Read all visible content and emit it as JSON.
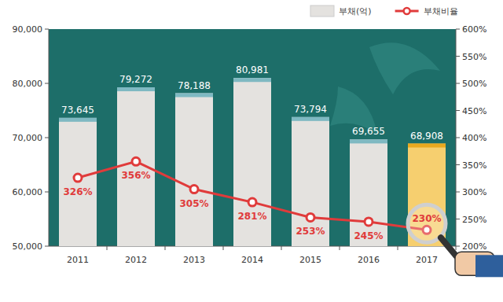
{
  "chart_data": {
    "type": "bar",
    "categories": [
      "2011",
      "2012",
      "2013",
      "2014",
      "2015",
      "2016",
      "2017"
    ],
    "series": [
      {
        "name": "부채(억)",
        "type": "bar",
        "color": "#e4e2df",
        "colors": [
          "#e4e2df",
          "#e4e2df",
          "#e4e2df",
          "#e4e2df",
          "#e4e2df",
          "#e4e2df",
          "#f6cf6f"
        ],
        "values": [
          73645,
          79272,
          78188,
          80981,
          73794,
          69655,
          68908
        ],
        "value_labels": [
          "73,645",
          "79,272",
          "78,188",
          "80,981",
          "73,794",
          "69,655",
          "68,908"
        ]
      },
      {
        "name": "부채비율",
        "type": "line",
        "axis": "y2",
        "color": "#e03b3b",
        "marker": "circle",
        "values": [
          326,
          356,
          305,
          281,
          253,
          245,
          230
        ],
        "value_labels": [
          "326%",
          "356%",
          "305%",
          "281%",
          "253%",
          "245%",
          "230%"
        ]
      }
    ],
    "ylim": [
      50000,
      90000
    ],
    "yticks": [
      {
        "value": 50000,
        "label": "50,000"
      },
      {
        "value": 60000,
        "label": "60,000"
      },
      {
        "value": 70000,
        "label": "70,000"
      },
      {
        "value": 80000,
        "label": "80,000"
      },
      {
        "value": 90000,
        "label": "90,000"
      }
    ],
    "y2lim": [
      200,
      600
    ],
    "y2ticks": [
      {
        "value": 200,
        "label": "200%"
      },
      {
        "value": 250,
        "label": "250%"
      },
      {
        "value": 300,
        "label": "300%"
      },
      {
        "value": 350,
        "label": "350%"
      },
      {
        "value": 400,
        "label": "400%"
      },
      {
        "value": 450,
        "label": "450%"
      },
      {
        "value": 500,
        "label": "500%"
      },
      {
        "value": 550,
        "label": "550%"
      },
      {
        "value": 600,
        "label": "600%"
      }
    ],
    "grid": false,
    "legend": "upper right",
    "data_labels": true
  }
}
